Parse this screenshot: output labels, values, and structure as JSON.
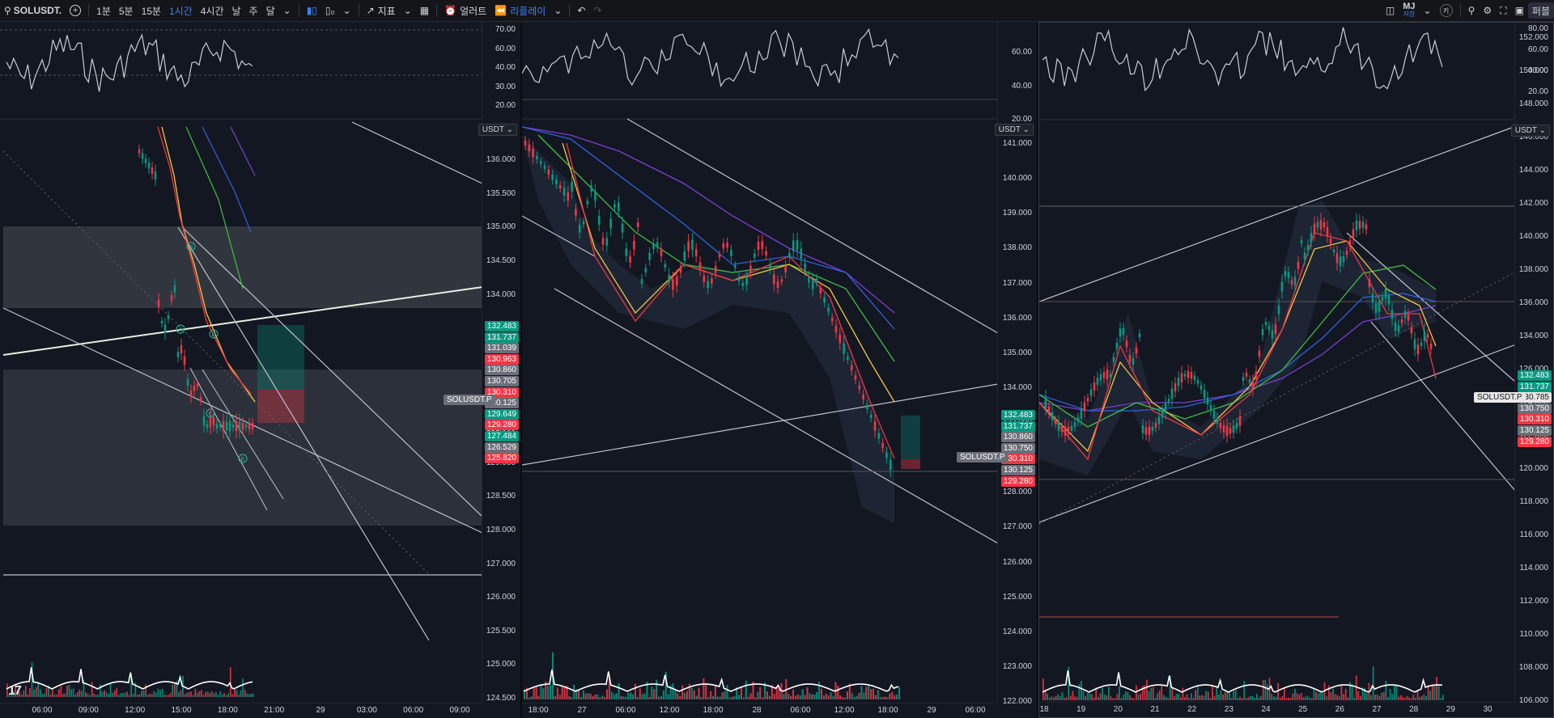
{
  "toolbar": {
    "symbol": "SOLUSDT.",
    "intervals": [
      "1분",
      "5분",
      "15분",
      "1시간",
      "4시간",
      "날",
      "주",
      "달"
    ],
    "selected_interval": "1시간",
    "indicators_label": "지표",
    "alert_label": "얼러트",
    "replay_label": "리플레이",
    "user_initials": "MJ",
    "user_sub": "저장",
    "key_label": "키",
    "publish_label": "퍼블"
  },
  "panels": [
    {
      "currency": "USDT",
      "osc_axis": [
        "70.00",
        "60.00",
        "40.00",
        "30.00",
        "20.00"
      ],
      "price_axis": [
        "136.000",
        "135.500",
        "135.000",
        "134.500",
        "134.000",
        "133.500",
        "133.000",
        "131.500",
        "131.000",
        "129.000",
        "128.500",
        "128.000",
        "127.000",
        "126.000",
        "125.500",
        "125.000",
        "124.500"
      ],
      "badges": [
        {
          "v": "132.483",
          "c": "green"
        },
        {
          "v": "131.737",
          "c": "green"
        },
        {
          "v": "131.039",
          "c": "gray"
        },
        {
          "v": "130.963",
          "c": "red"
        },
        {
          "v": "130.860",
          "c": "gray"
        },
        {
          "v": "130.705",
          "c": "gray"
        },
        {
          "v": "130.310",
          "c": "red"
        },
        {
          "v": "130.125",
          "c": "gray"
        },
        {
          "v": "129.649",
          "c": "green"
        },
        {
          "v": "129.280",
          "c": "red"
        },
        {
          "v": "127.484",
          "c": "green"
        },
        {
          "v": "126.529",
          "c": "gray"
        },
        {
          "v": "125.820",
          "c": "red"
        }
      ],
      "sym_tag": "SOLUSDT.P",
      "time_axis": [
        "06:00",
        "09:00",
        "12:00",
        "15:00",
        "18:00",
        "21:00",
        "29",
        "03:00",
        "06:00",
        "09:00"
      ],
      "wave_labels": [
        "B",
        "A",
        "D",
        "C",
        "E"
      ]
    },
    {
      "currency": "USDT",
      "osc_axis": [
        "60.00",
        "40.00",
        "20.00"
      ],
      "price_axis": [
        "141.000",
        "140.000",
        "139.000",
        "138.000",
        "137.000",
        "136.000",
        "135.000",
        "134.000",
        "133.000",
        "129.000",
        "128.000",
        "127.000",
        "126.000",
        "125.000",
        "124.000",
        "123.000",
        "122.000"
      ],
      "badges": [
        {
          "v": "132.483",
          "c": "green"
        },
        {
          "v": "131.737",
          "c": "green"
        },
        {
          "v": "130.860",
          "c": "gray"
        },
        {
          "v": "130.750",
          "c": "gray"
        },
        {
          "v": "130.310",
          "c": "red"
        },
        {
          "v": "130.125",
          "c": "gray"
        },
        {
          "v": "129.280",
          "c": "red"
        }
      ],
      "sym_tag": "SOLUSDT.P",
      "time_axis": [
        "18:00",
        "27",
        "06:00",
        "12:00",
        "18:00",
        "28",
        "06:00",
        "12:00",
        "18:00",
        "29",
        "06:00"
      ]
    },
    {
      "currency": "USDT",
      "osc_axis": [
        "80.00",
        "60.00",
        "40.00",
        "20.00"
      ],
      "price_axis": [
        "152.000",
        "150.000",
        "148.000",
        "146.000",
        "144.000",
        "142.000",
        "140.000",
        "138.000",
        "136.000",
        "134.000",
        "126.000",
        "124.000",
        "122.000",
        "120.000",
        "118.000",
        "116.000",
        "114.000",
        "112.000",
        "110.000",
        "108.000",
        "106.000"
      ],
      "badges": [
        {
          "v": "132.483",
          "c": "green"
        },
        {
          "v": "131.737",
          "c": "green"
        },
        {
          "v": "130.785",
          "c": "white"
        },
        {
          "v": "130.750",
          "c": "gray"
        },
        {
          "v": "130.310",
          "c": "red"
        },
        {
          "v": "130.125",
          "c": "gray"
        },
        {
          "v": "129.280",
          "c": "red"
        }
      ],
      "sym_tag": "SOLUSDT.P",
      "time_axis": [
        "18",
        "19",
        "20",
        "21",
        "22",
        "23",
        "24",
        "25",
        "26",
        "27",
        "28",
        "29",
        "30"
      ]
    }
  ],
  "colors": {
    "up": "#089981",
    "down": "#f23645",
    "bg": "#131722"
  }
}
